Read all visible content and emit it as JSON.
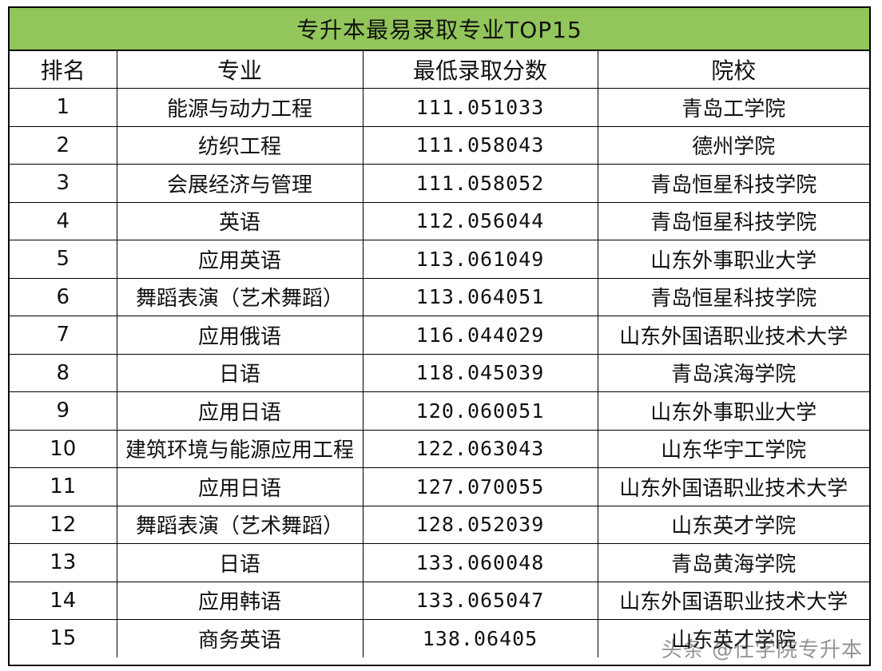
{
  "title": "专升本最易录取专业TOP15",
  "headers": [
    "排名",
    "专业",
    "最低录取分数",
    "院校"
  ],
  "rows": [
    {
      "rank": "1",
      "major": "能源与动力工程",
      "score": "111.051033",
      "school": "青岛工学院"
    },
    {
      "rank": "2",
      "major": "纺织工程",
      "score": "111.058043",
      "school": "德州学院"
    },
    {
      "rank": "3",
      "major": "会展经济与管理",
      "score": "111.058052",
      "school": "青岛恒星科技学院"
    },
    {
      "rank": "4",
      "major": "英语",
      "score": "112.056044",
      "school": "青岛恒星科技学院"
    },
    {
      "rank": "5",
      "major": "应用英语",
      "score": "113.061049",
      "school": "山东外事职业大学"
    },
    {
      "rank": "6",
      "major": "舞蹈表演（艺术舞蹈）",
      "score": "113.064051",
      "school": "青岛恒星科技学院"
    },
    {
      "rank": "7",
      "major": "应用俄语",
      "score": "116.044029",
      "school": "山东外国语职业技术大学"
    },
    {
      "rank": "8",
      "major": "日语",
      "score": "118.045039",
      "school": "青岛滨海学院"
    },
    {
      "rank": "9",
      "major": "应用日语",
      "score": "120.060051",
      "school": "山东外事职业大学"
    },
    {
      "rank": "10",
      "major": "建筑环境与能源应用工程",
      "score": "122.063043",
      "school": "山东华宇工学院"
    },
    {
      "rank": "11",
      "major": "应用日语",
      "score": "127.070055",
      "school": "山东外国语职业技术大学"
    },
    {
      "rank": "12",
      "major": "舞蹈表演（艺术舞蹈）",
      "score": "128.052039",
      "school": "山东英才学院"
    },
    {
      "rank": "13",
      "major": "日语",
      "score": "133.060048",
      "school": "青岛黄海学院"
    },
    {
      "rank": "14",
      "major": "应用韩语",
      "score": "133.065047",
      "school": "山东外国语职业技术大学"
    },
    {
      "rank": "15",
      "major": "商务英语",
      "score": "138.06405",
      "school": "山东英才学院"
    }
  ],
  "watermark": "头条 @仕学院专升本"
}
